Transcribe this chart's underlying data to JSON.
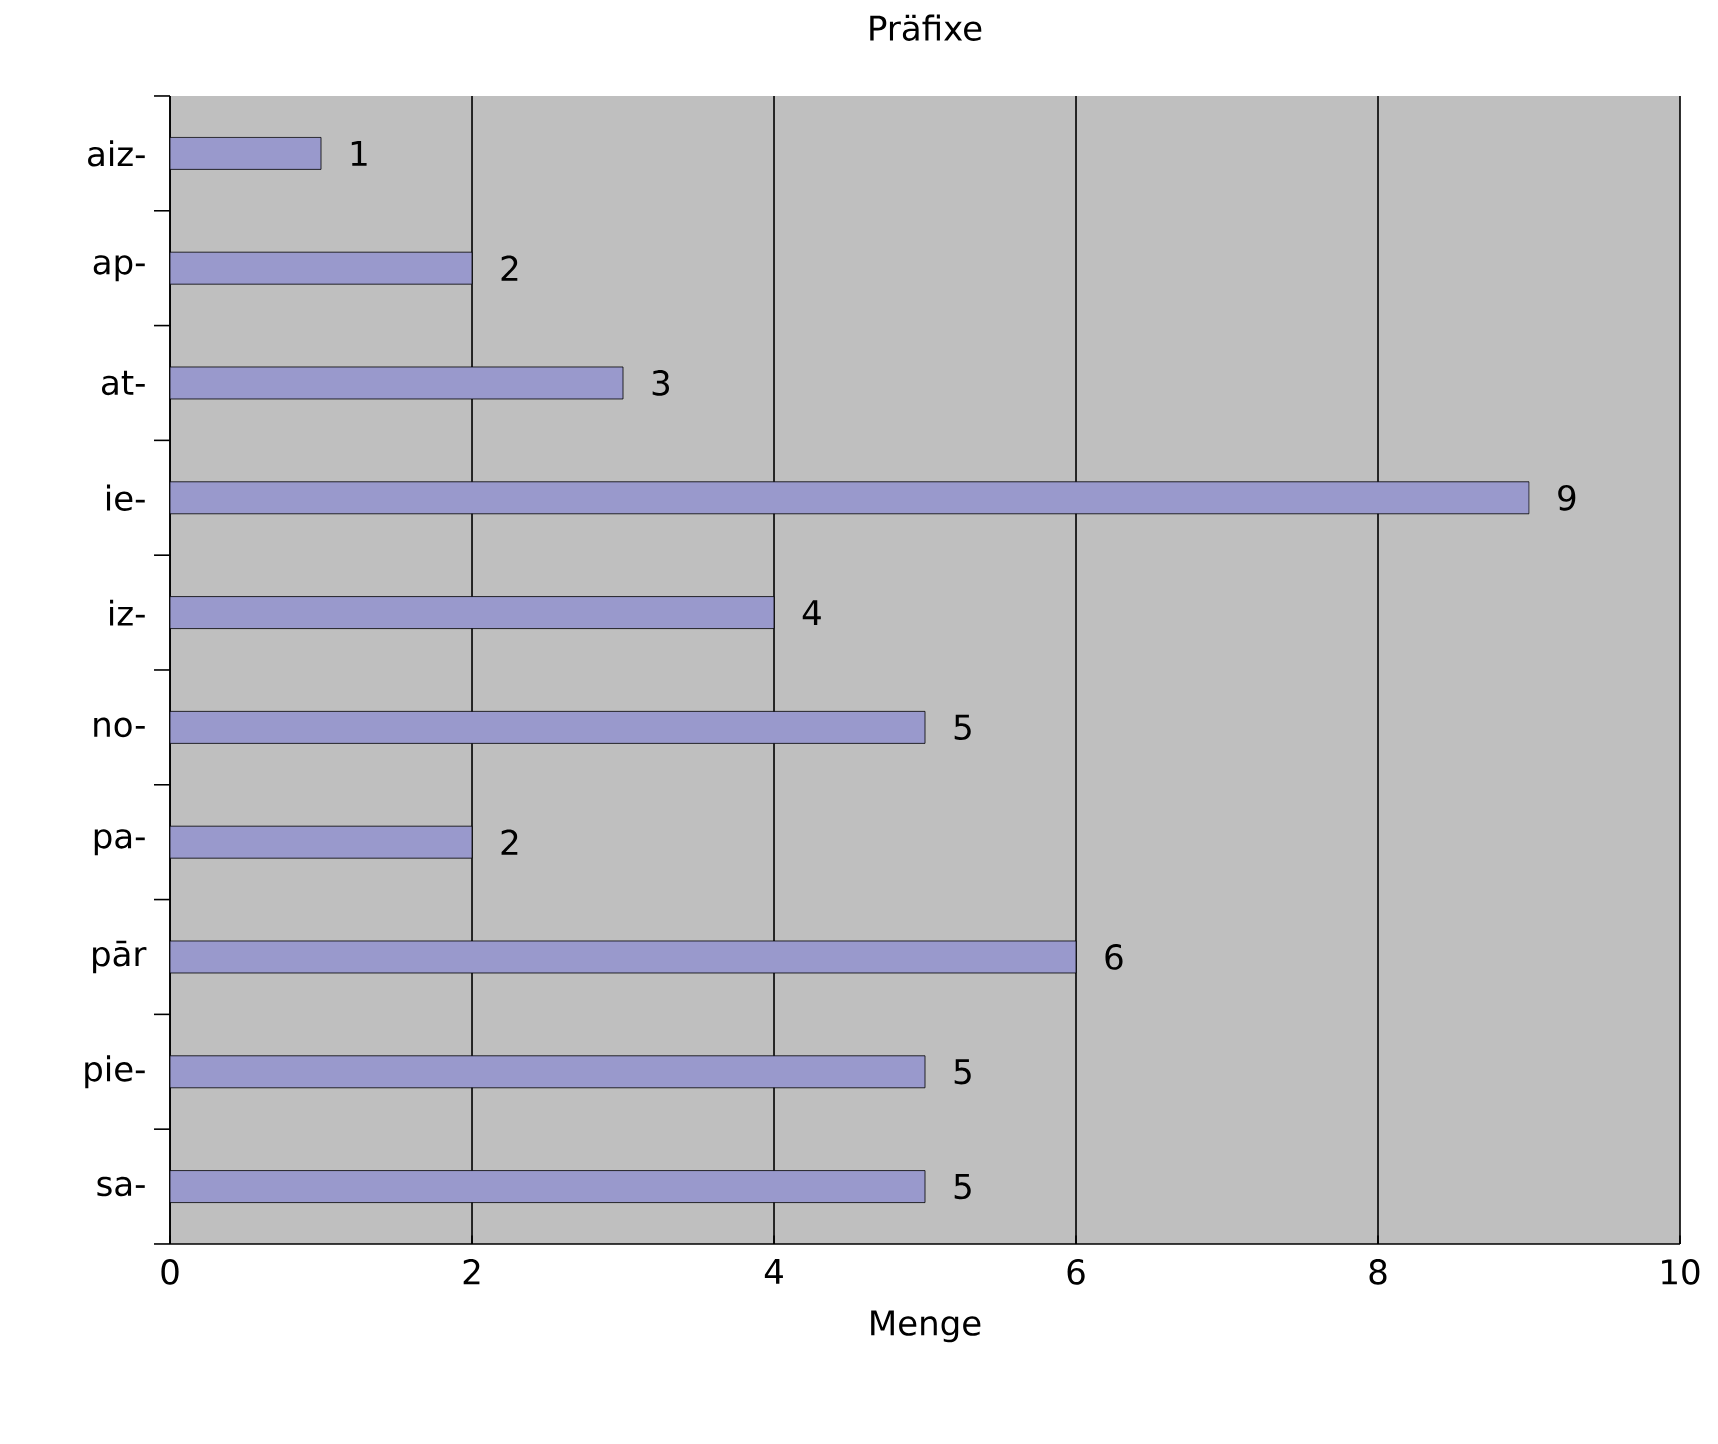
{
  "chart_data": {
    "type": "bar",
    "orientation": "horizontal",
    "title": "Präfixe",
    "xlabel": "Menge",
    "categories": [
      "aiz-",
      "ap-",
      "at-",
      "ie-",
      "iz-",
      "no-",
      "pa-",
      "pār",
      "pie-",
      "sa-"
    ],
    "values": [
      1,
      2,
      3,
      9,
      4,
      5,
      2,
      6,
      5,
      5
    ],
    "color": "#9999cc",
    "xlim": [
      0,
      10
    ],
    "xticks": [
      0,
      2,
      4,
      6,
      8,
      10
    ],
    "grid": "x",
    "data_labels": true
  }
}
